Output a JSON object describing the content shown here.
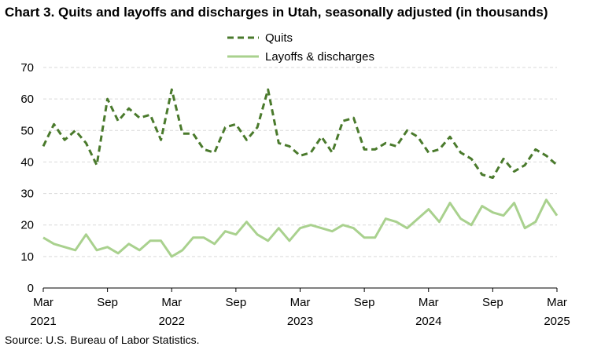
{
  "title": "Chart 3. Quits and layoffs and discharges in Utah, seasonally adjusted (in thousands)",
  "source": "Source: U.S. Bureau of Labor Statistics.",
  "chart_data": {
    "type": "line",
    "title": "Chart 3. Quits and layoffs and discharges in Utah, seasonally adjusted (in thousands)",
    "xlabel": "",
    "ylabel": "",
    "ylim": [
      0,
      70
    ],
    "yticks": [
      0,
      10,
      20,
      30,
      40,
      50,
      60,
      70
    ],
    "grid": true,
    "legend": "top-center",
    "x_range": [
      "2021-03",
      "2025-03"
    ],
    "x_tick_labels": [
      {
        "month": "Mar",
        "year": "2021",
        "date": "2021-03"
      },
      {
        "month": "Sep",
        "year": "",
        "date": "2021-09"
      },
      {
        "month": "Mar",
        "year": "2022",
        "date": "2022-03"
      },
      {
        "month": "Sep",
        "year": "",
        "date": "2022-09"
      },
      {
        "month": "Mar",
        "year": "2023",
        "date": "2023-03"
      },
      {
        "month": "Sep",
        "year": "",
        "date": "2023-09"
      },
      {
        "month": "Mar",
        "year": "2024",
        "date": "2024-03"
      },
      {
        "month": "Sep",
        "year": "",
        "date": "2024-09"
      },
      {
        "month": "Mar",
        "year": "2025",
        "date": "2025-03"
      }
    ],
    "series": [
      {
        "name": "Quits",
        "color": "#4a7a2c",
        "style": "dashed",
        "values": [
          45,
          52,
          47,
          50,
          46,
          39,
          60,
          53,
          57,
          54,
          55,
          47,
          63,
          49,
          49,
          44,
          43,
          51,
          52,
          47,
          51,
          63,
          46,
          45,
          42,
          43,
          48,
          43,
          53,
          54,
          44,
          44,
          46,
          45,
          50,
          48,
          43,
          44,
          48,
          43,
          41,
          36,
          35,
          41,
          37,
          39,
          44,
          42,
          39
        ]
      },
      {
        "name": "Layoffs & discharges",
        "color": "#a9d18e",
        "style": "solid",
        "values": [
          16,
          14,
          13,
          12,
          17,
          12,
          13,
          11,
          14,
          12,
          15,
          15,
          10,
          12,
          16,
          16,
          14,
          18,
          17,
          21,
          17,
          15,
          19,
          15,
          19,
          20,
          19,
          18,
          20,
          19,
          16,
          16,
          22,
          21,
          19,
          22,
          25,
          21,
          27,
          22,
          20,
          26,
          24,
          23,
          27,
          19,
          21,
          28,
          23
        ]
      }
    ]
  }
}
